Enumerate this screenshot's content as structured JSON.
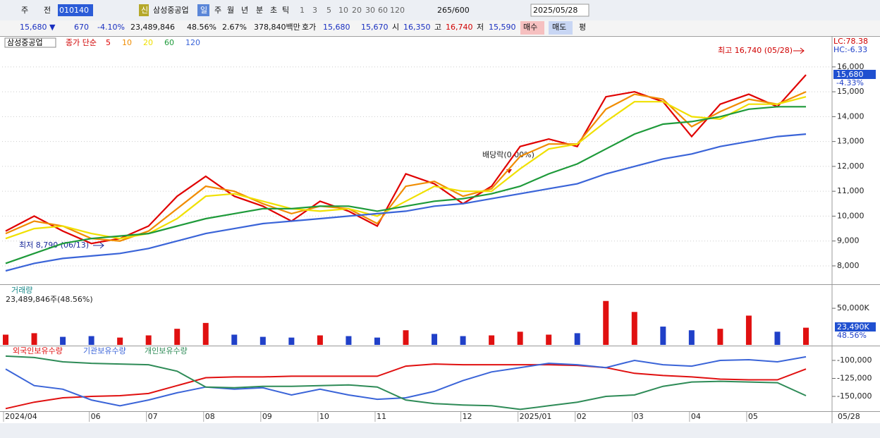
{
  "toolbar": {
    "row1": [
      "주",
      "전",
      "010140",
      "신",
      "삼성중공업",
      "일",
      "주",
      "월",
      "년",
      "분",
      "초",
      "틱",
      "1",
      "3",
      "5",
      "10",
      "20",
      "30",
      "60",
      "120",
      "265/600",
      "2025/05/28"
    ],
    "row2": [
      "15,680 ▼",
      "670",
      "-4.10%",
      "23,489,846",
      "48.56%",
      "2.67%",
      "378,840백만",
      "호가",
      "15,680",
      "15,670",
      "시",
      "16,350",
      "고",
      "16,740",
      "저",
      "15,590",
      "매수",
      "매도",
      "평"
    ]
  },
  "chart_data": [
    {
      "type": "line",
      "title": "삼성중공업",
      "legend_prefix": "종가 단순",
      "annotations": [
        "최고 16,740 (05/28)",
        "최저 8,790 (06/13)",
        "배당락(0.00%)"
      ],
      "right_labels": [
        "LC:78.38",
        "HC:-6.33",
        "15,680",
        "-4.33%"
      ],
      "ylim": [
        7290,
        17130
      ],
      "yticks": [
        {
          "value": 8000,
          "label": "8,000"
        },
        {
          "value": 9000,
          "label": "9,000"
        },
        {
          "value": 10000,
          "label": "10,000"
        },
        {
          "value": 11000,
          "label": "11,000"
        },
        {
          "value": 12000,
          "label": "12,000"
        },
        {
          "value": 13000,
          "label": "13,000"
        },
        {
          "value": 14000,
          "label": "14,000"
        },
        {
          "value": 15000,
          "label": "15,000"
        },
        {
          "value": 16000,
          "label": "16,000"
        }
      ],
      "grid": true,
      "series": [
        {
          "name": "5",
          "color": "#e00000",
          "values": [
            9400,
            10000,
            9400,
            8900,
            9100,
            9600,
            10800,
            11600,
            10800,
            10400,
            9800,
            10600,
            10200,
            9600,
            11700,
            11300,
            10500,
            11200,
            12800,
            13100,
            12800,
            14800,
            15000,
            14600,
            13200,
            14500,
            14900,
            14400,
            15680
          ]
        },
        {
          "name": "10",
          "color": "#f08c00",
          "values": [
            9300,
            9800,
            9600,
            9100,
            9000,
            9400,
            10300,
            11200,
            11000,
            10500,
            10100,
            10400,
            10300,
            9700,
            11200,
            11400,
            10800,
            11100,
            12400,
            12900,
            12900,
            14300,
            14900,
            14700,
            13600,
            14200,
            14700,
            14500,
            15000
          ]
        },
        {
          "name": "20",
          "color": "#f0e000",
          "values": [
            9100,
            9500,
            9600,
            9300,
            9100,
            9300,
            9900,
            10800,
            10900,
            10600,
            10300,
            10200,
            10300,
            10000,
            10600,
            11200,
            11000,
            11000,
            11900,
            12700,
            12900,
            13800,
            14600,
            14600,
            14000,
            13900,
            14500,
            14500,
            14800
          ]
        },
        {
          "name": "60",
          "color": "#1e9a3a",
          "values": [
            8100,
            8500,
            8900,
            9100,
            9200,
            9300,
            9600,
            9900,
            10100,
            10300,
            10300,
            10400,
            10400,
            10200,
            10400,
            10600,
            10700,
            10900,
            11200,
            11700,
            12100,
            12700,
            13300,
            13700,
            13800,
            14000,
            14300,
            14400,
            14400
          ]
        },
        {
          "name": "120",
          "color": "#3a64d8",
          "values": [
            7800,
            8100,
            8300,
            8400,
            8500,
            8700,
            9000,
            9300,
            9500,
            9700,
            9800,
            9900,
            10000,
            10100,
            10200,
            10400,
            10500,
            10700,
            10900,
            11100,
            11300,
            11700,
            12000,
            12300,
            12500,
            12800,
            13000,
            13200,
            13300
          ]
        }
      ]
    },
    {
      "type": "bar",
      "title": "거래량",
      "subtitle": "23,489,846주(48.56%)",
      "last_value_label": "23,490K",
      "last_ratio_label": "48.56%",
      "up_color": "#e01010",
      "down_color": "#2040c8",
      "ylim": [
        0,
        79000
      ],
      "yticks": [
        {
          "value": 50000,
          "label": "50,000K"
        }
      ],
      "values": [
        14000,
        16000,
        11000,
        12000,
        10000,
        13000,
        22000,
        30000,
        14000,
        11000,
        10000,
        13000,
        12000,
        10000,
        20000,
        15000,
        12000,
        13000,
        18000,
        14000,
        16000,
        60000,
        45000,
        25000,
        20000,
        22000,
        40000,
        18000,
        23490
      ]
    },
    {
      "type": "line",
      "ylim": [
        -169600,
        -81400
      ],
      "yticks": [
        {
          "value": -100000,
          "label": "-100,000"
        },
        {
          "value": -125000,
          "label": "-125,000"
        },
        {
          "value": -150000,
          "label": "-150,000"
        }
      ],
      "categories": [
        "2024/04",
        null,
        null,
        "06",
        null,
        "07",
        null,
        "08",
        null,
        "09",
        null,
        "10",
        null,
        "11",
        null,
        null,
        "12",
        null,
        "2025/01",
        null,
        "02",
        null,
        "03",
        null,
        "04",
        null,
        "05",
        null,
        null
      ],
      "cursor_date": "05/28",
      "series": [
        {
          "name": "외국인보유수량",
          "color": "#e01010",
          "values": [
            -167000,
            -158000,
            -152000,
            -150000,
            -149000,
            -146000,
            -135000,
            -124000,
            -123000,
            -123000,
            -122000,
            -122000,
            -122000,
            -122000,
            -108000,
            -105000,
            -106000,
            -106000,
            -106000,
            -106000,
            -107000,
            -110000,
            -118000,
            -121000,
            -123000,
            -126000,
            -127000,
            -127000,
            -112000
          ]
        },
        {
          "name": "기관보유수량",
          "color": "#3a64d8",
          "values": [
            -112000,
            -135000,
            -140000,
            -155000,
            -163000,
            -155000,
            -145000,
            -137000,
            -140000,
            -138000,
            -148000,
            -140000,
            -148000,
            -154000,
            -152000,
            -143000,
            -128000,
            -116000,
            -110000,
            -104000,
            -106000,
            -110000,
            -100000,
            -106000,
            -108000,
            -100000,
            -99000,
            -102000,
            -95000
          ]
        },
        {
          "name": "개인보유수량",
          "color": "#2e8b57",
          "values": [
            -94000,
            -96000,
            -102000,
            -104000,
            -105000,
            -106000,
            -115000,
            -137000,
            -138000,
            -136000,
            -136000,
            -135000,
            -134000,
            -137000,
            -155000,
            -160000,
            -162000,
            -163000,
            -168000,
            -163000,
            -158000,
            -150000,
            -148000,
            -136000,
            -130000,
            -129000,
            -130000,
            -131000,
            -149000
          ]
        }
      ]
    }
  ]
}
